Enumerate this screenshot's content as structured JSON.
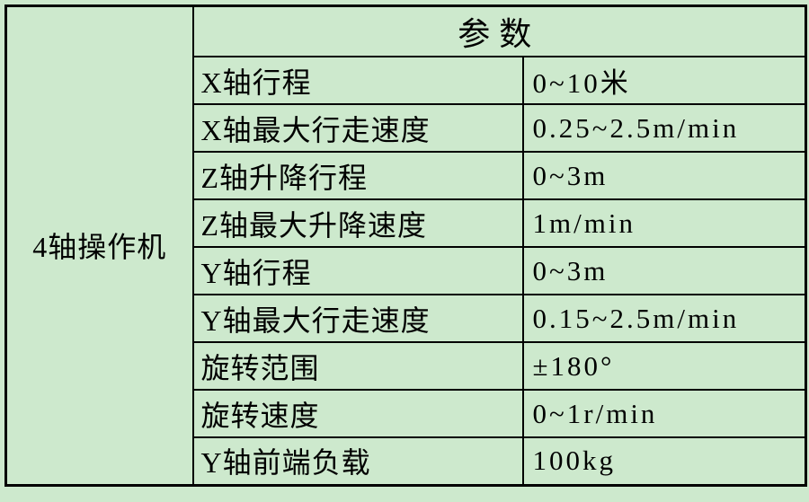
{
  "colors": {
    "background": "#cde9cd",
    "grid": "#000000",
    "text": "#000000"
  },
  "table": {
    "device_label": "4轴操作机",
    "header": "参数",
    "rows": [
      {
        "param": "X轴行程",
        "value": "0~10米"
      },
      {
        "param": "X轴最大行走速度",
        "value": "0.25~2.5m/min"
      },
      {
        "param": "Z轴升降行程",
        "value": "0~3m"
      },
      {
        "param": "Z轴最大升降速度",
        "value": "1m/min"
      },
      {
        "param": "Y轴行程",
        "value": "0~3m"
      },
      {
        "param": "Y轴最大行走速度",
        "value": "0.15~2.5m/min"
      },
      {
        "param": "旋转范围",
        "value": "±180°"
      },
      {
        "param": "旋转速度",
        "value": "0~1r/min"
      },
      {
        "param": "Y轴前端负载",
        "value": "100kg"
      }
    ]
  }
}
